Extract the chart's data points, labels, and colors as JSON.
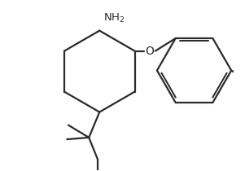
{
  "line_color": "#2b2b2b",
  "bg_color": "#ffffff",
  "line_width": 1.6,
  "font_size": 9.5,
  "nh2_color": "#2b2b2b"
}
